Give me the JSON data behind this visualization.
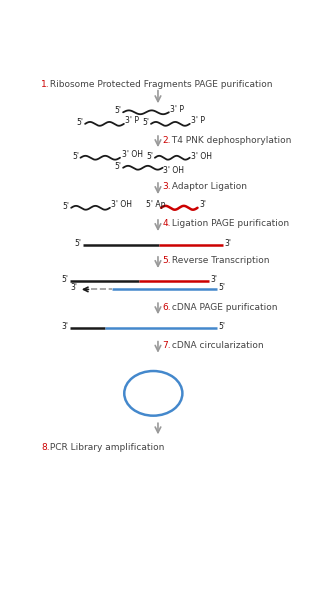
{
  "bg_color": "#ffffff",
  "steps": [
    {
      "num": "1.",
      "text": " Ribosome Protected Fragments PAGE purification",
      "num_color": "#cc0000",
      "text_color": "#444444"
    },
    {
      "num": "2.",
      "text": " T4 PNK dephosphorylation",
      "num_color": "#cc0000",
      "text_color": "#444444"
    },
    {
      "num": "3.",
      "text": " Adaptor Ligation",
      "num_color": "#cc0000",
      "text_color": "#444444"
    },
    {
      "num": "4.",
      "text": " Ligation PAGE purification",
      "num_color": "#cc0000",
      "text_color": "#444444"
    },
    {
      "num": "5.",
      "text": " Reverse Transcription",
      "num_color": "#cc0000",
      "text_color": "#444444"
    },
    {
      "num": "6.",
      "text": " cDNA PAGE purification",
      "num_color": "#cc0000",
      "text_color": "#444444"
    },
    {
      "num": "7.",
      "text": " cDNA circularization",
      "num_color": "#cc0000",
      "text_color": "#444444"
    },
    {
      "num": "8.",
      "text": " PCR Library amplification",
      "num_color": "#cc0000",
      "text_color": "#444444"
    }
  ],
  "arrow_color": "#999999",
  "black": "#1a1a1a",
  "red": "#cc0000",
  "blue": "#4488cc",
  "gray": "#999999",
  "fs_step": 6.5,
  "fs_label": 5.5
}
